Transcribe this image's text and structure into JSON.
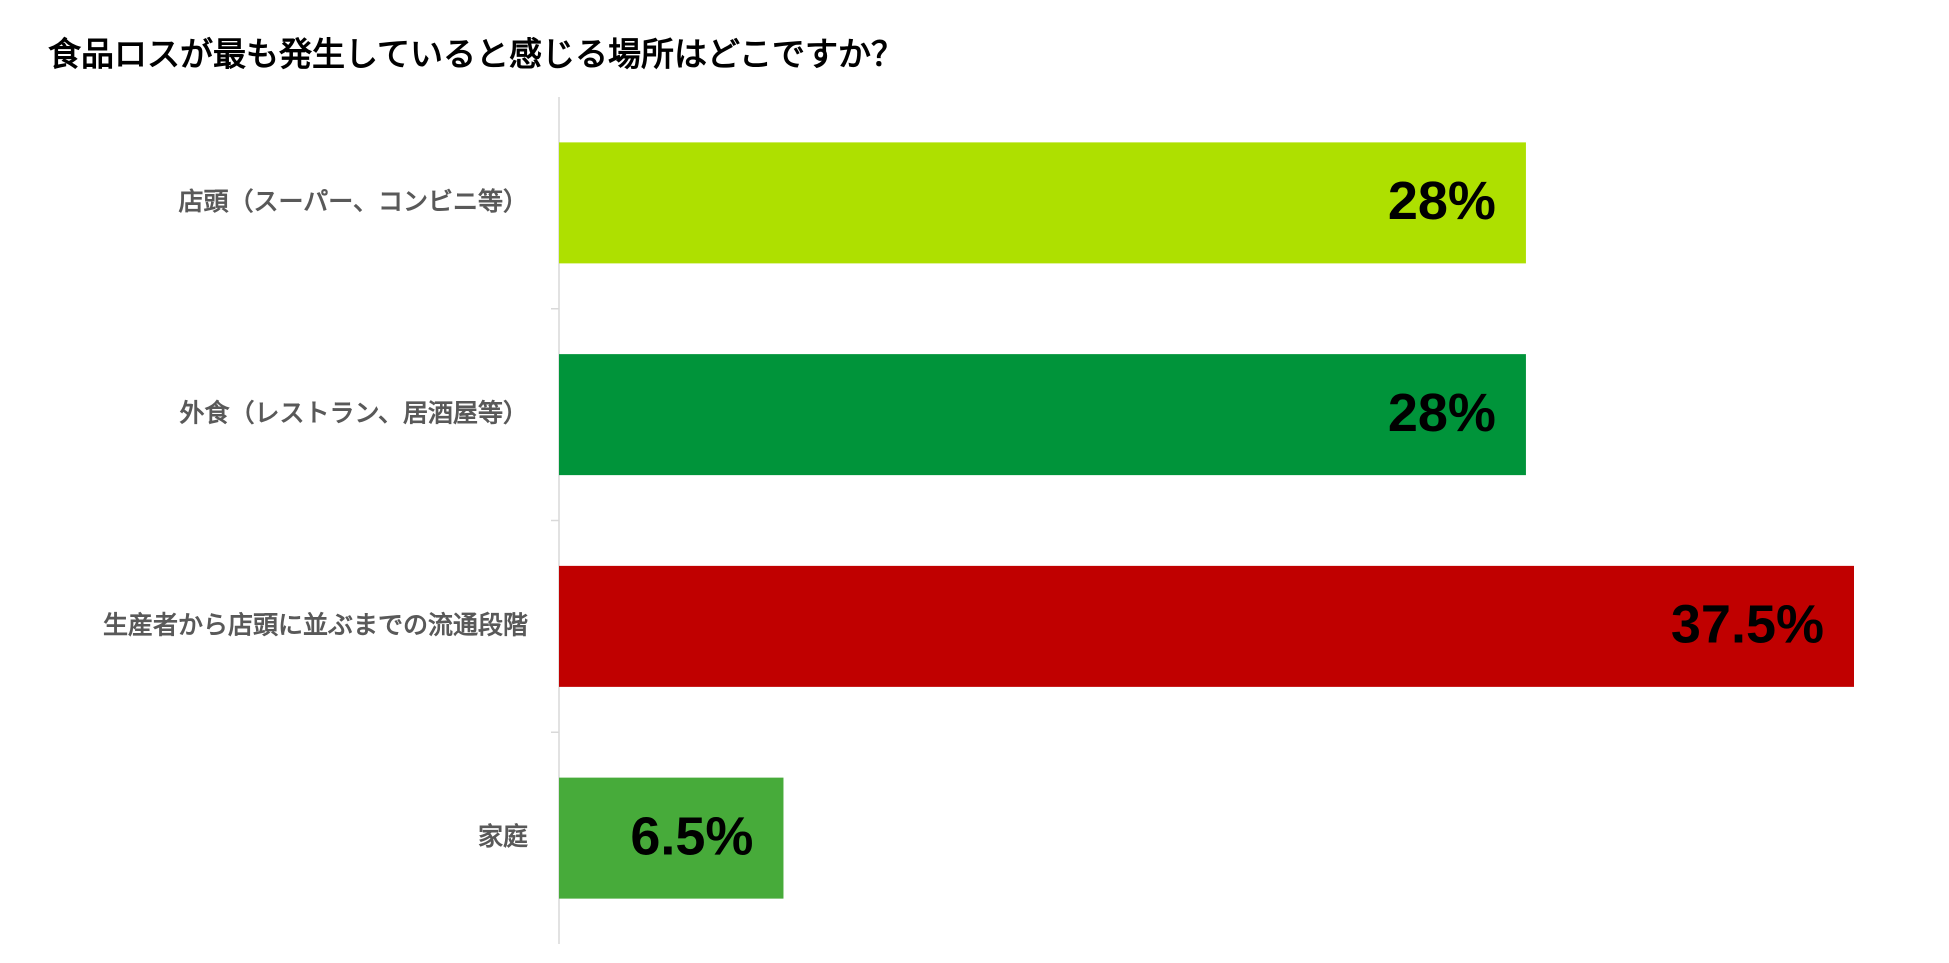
{
  "chart_data": {
    "type": "barh",
    "title": "食品ロスが最も発生していると感じる場所はどこですか？",
    "categories": [
      "店頭（スーパー、コンビニ等）",
      "外食（レストラン、居酒屋等）",
      "生産者から店頭に並ぶまでの流通段階",
      "家庭"
    ],
    "values": [
      28,
      28,
      37.5,
      6.5
    ],
    "value_labels": [
      "28%",
      "28%",
      "37.5%",
      "6.5%"
    ],
    "colors": [
      "#aee000",
      "#00943a",
      "#c00000",
      "#47ab3a"
    ]
  }
}
